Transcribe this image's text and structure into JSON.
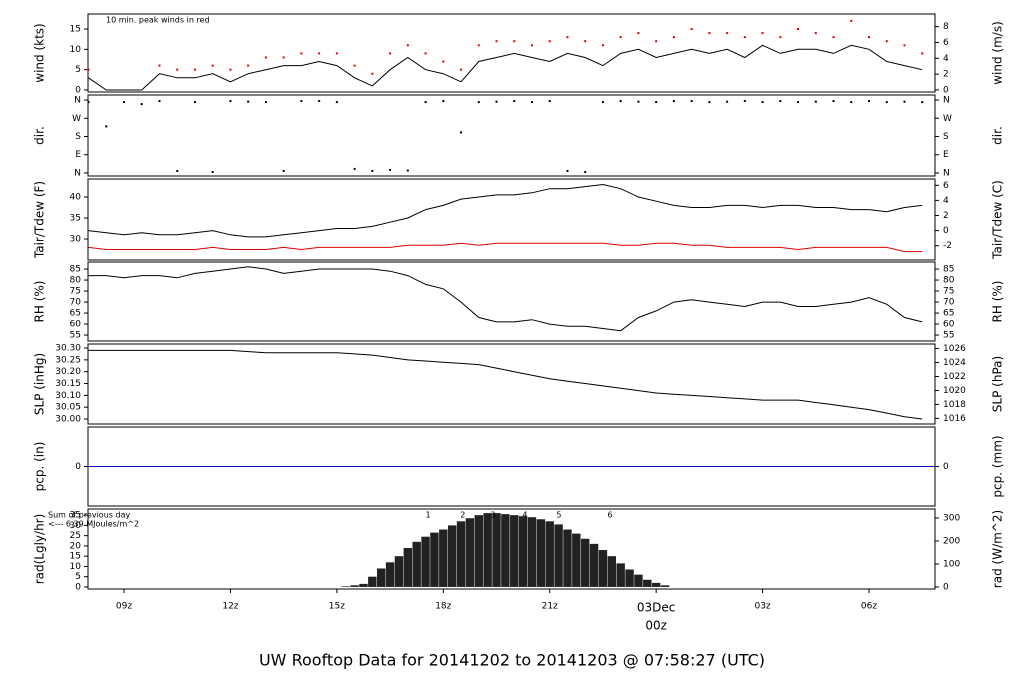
{
  "title": "UW Rooftop Data for 20141202  to  20141203 @ 07:58:27  (UTC)",
  "title_color": "#1a1acc",
  "time_axis": {
    "xlim": [
      7.985,
      31.86
    ],
    "xticks": [
      {
        "value": 9,
        "label": "09z"
      },
      {
        "value": 12,
        "label": "12z"
      },
      {
        "value": 15,
        "label": "15z"
      },
      {
        "value": 18,
        "label": "18z"
      },
      {
        "value": 21,
        "label": "21z"
      },
      {
        "value": 24,
        "label": "00z"
      },
      {
        "value": 27,
        "label": "03z"
      },
      {
        "value": 30,
        "label": "06z"
      }
    ],
    "date_label": {
      "text": "03Dec",
      "x": 24,
      "color": "#dd0000"
    }
  },
  "chart_data": [
    {
      "type": "line",
      "ylabel": "wind (kts)",
      "y2label": "wind (m/s)",
      "ylim": [
        -0.5,
        18.7
      ],
      "yticks": [
        0,
        5,
        10,
        15
      ],
      "y2lim": [
        -0.26,
        9.6
      ],
      "y2ticks": [
        0,
        2,
        4,
        6,
        8
      ],
      "annotation": "10 min. peak winds in red",
      "annotation_color": "#dd0000",
      "x": [
        8,
        8.5,
        9,
        9.5,
        10,
        10.5,
        11,
        11.5,
        12,
        12.5,
        13,
        13.5,
        14,
        14.5,
        15,
        15.5,
        16,
        16.5,
        17,
        17.5,
        18,
        18.5,
        19,
        19.5,
        20,
        20.5,
        21,
        21.5,
        22,
        22.5,
        23,
        23.5,
        24,
        24.5,
        25,
        25.5,
        26,
        26.5,
        27,
        27.5,
        28,
        28.5,
        29,
        29.5,
        30,
        30.5,
        31,
        31.5
      ],
      "series": [
        {
          "kind": "line",
          "color": "#000000",
          "values": [
            3,
            0,
            0,
            0,
            4,
            3,
            3,
            4,
            2,
            4,
            5,
            6,
            6,
            7,
            6,
            3,
            1,
            5,
            8,
            5,
            4,
            2,
            7,
            8,
            9,
            8,
            7,
            9,
            8,
            6,
            9,
            10,
            8,
            9,
            10,
            9,
            10,
            8,
            11,
            9,
            10,
            10,
            9,
            11,
            10,
            7,
            6,
            5
          ]
        },
        {
          "kind": "points",
          "color": "#dd0000",
          "values": [
            5,
            null,
            null,
            null,
            6,
            5,
            5,
            6,
            5,
            6,
            8,
            8,
            9,
            9,
            9,
            6,
            4,
            9,
            11,
            9,
            7,
            5,
            11,
            12,
            12,
            11,
            12,
            13,
            12,
            11,
            13,
            14,
            12,
            13,
            15,
            14,
            14,
            13,
            14,
            13,
            15,
            14,
            13,
            17,
            13,
            12,
            11,
            9
          ]
        }
      ]
    },
    {
      "type": "scatter",
      "ylabel": "dir.",
      "y2label": "dir.",
      "ylim": [
        -15,
        385
      ],
      "yticks": [
        {
          "value": 360,
          "label": "N"
        },
        {
          "value": 270,
          "label": "W"
        },
        {
          "value": 180,
          "label": "S"
        },
        {
          "value": 90,
          "label": "E"
        },
        {
          "value": 0,
          "label": "N"
        }
      ],
      "y2lim": [
        -15,
        385
      ],
      "y2ticks": [
        {
          "value": 360,
          "label": "N"
        },
        {
          "value": 270,
          "label": "W"
        },
        {
          "value": 180,
          "label": "S"
        },
        {
          "value": 90,
          "label": "E"
        },
        {
          "value": 0,
          "label": "N"
        }
      ],
      "x": [
        8,
        8.5,
        9,
        9.5,
        10,
        10.5,
        11,
        11.5,
        12,
        12.5,
        13,
        13.5,
        14,
        14.5,
        15,
        15.5,
        16,
        16.5,
        17,
        17.5,
        18,
        18.5,
        19,
        19.5,
        20,
        20.5,
        21,
        21.5,
        22,
        22.5,
        23,
        23.5,
        24,
        24.5,
        25,
        25.5,
        26,
        26.5,
        27,
        27.5,
        28,
        28.5,
        29,
        29.5,
        30,
        30.5,
        31,
        31.5
      ],
      "series": [
        {
          "kind": "points",
          "color": "#000000",
          "values": [
            350,
            230,
            350,
            340,
            355,
            10,
            350,
            5,
            355,
            352,
            350,
            10,
            355,
            355,
            350,
            20,
            10,
            15,
            12,
            350,
            355,
            200,
            350,
            352,
            355,
            350,
            355,
            10,
            5,
            350,
            355,
            352,
            350,
            355,
            355,
            350,
            352,
            355,
            350,
            355,
            350,
            352,
            355,
            350,
            355,
            350,
            352,
            350
          ]
        }
      ]
    },
    {
      "type": "line",
      "ylabel": "Tair/Tdew (F)",
      "y2label": "Tair/Tdew (C)",
      "ylim": [
        25,
        44.3
      ],
      "yticks": [
        30,
        35,
        40
      ],
      "y2lim": [
        -3.89,
        6.83
      ],
      "y2ticks": [
        -2,
        0,
        2,
        4,
        6
      ],
      "x": [
        8,
        8.5,
        9,
        9.5,
        10,
        10.5,
        11,
        11.5,
        12,
        12.5,
        13,
        13.5,
        14,
        14.5,
        15,
        15.5,
        16,
        16.5,
        17,
        17.5,
        18,
        18.5,
        19,
        19.5,
        20,
        20.5,
        21,
        21.5,
        22,
        22.5,
        23,
        23.5,
        24,
        24.5,
        25,
        25.5,
        26,
        26.5,
        27,
        27.5,
        28,
        28.5,
        29,
        29.5,
        30,
        30.5,
        31,
        31.5
      ],
      "series": [
        {
          "kind": "line",
          "color": "#000000",
          "values": [
            32,
            31.5,
            31,
            31.5,
            31,
            31,
            31.5,
            32,
            31,
            30.5,
            30.5,
            31,
            31.5,
            32,
            32.5,
            32.5,
            33,
            34,
            35,
            37,
            38,
            39.5,
            40,
            40.5,
            40.5,
            41,
            42,
            42,
            42.5,
            43,
            42,
            40,
            39,
            38,
            37.5,
            37.5,
            38,
            38,
            37.5,
            38,
            38,
            37.5,
            37.5,
            37,
            37,
            36.5,
            37.5,
            38
          ]
        },
        {
          "kind": "line",
          "color": "#dd0000",
          "values": [
            28,
            27.5,
            27.5,
            27.5,
            27.5,
            27.5,
            27.5,
            28,
            27.5,
            27.5,
            27.5,
            28,
            27.5,
            28,
            28,
            28,
            28,
            28,
            28.5,
            28.5,
            28.5,
            29,
            28.5,
            29,
            29,
            29,
            29,
            29,
            29,
            29,
            28.5,
            28.5,
            29,
            29,
            28.5,
            28.5,
            28,
            28,
            28,
            28,
            27.5,
            28,
            28,
            28,
            28,
            28,
            27,
            27
          ]
        }
      ]
    },
    {
      "type": "line",
      "ylabel": "RH (%)",
      "y2label": "RH (%)",
      "ylim": [
        52.3,
        88.2
      ],
      "yticks": [
        55,
        60,
        65,
        70,
        75,
        80,
        85
      ],
      "y2lim": [
        52.3,
        88.2
      ],
      "y2ticks": [
        55,
        60,
        65,
        70,
        75,
        80,
        85
      ],
      "x": [
        8,
        8.5,
        9,
        9.5,
        10,
        10.5,
        11,
        11.5,
        12,
        12.5,
        13,
        13.5,
        14,
        14.5,
        15,
        15.5,
        16,
        16.5,
        17,
        17.5,
        18,
        18.5,
        19,
        19.5,
        20,
        20.5,
        21,
        21.5,
        22,
        22.5,
        23,
        23.5,
        24,
        24.5,
        25,
        25.5,
        26,
        26.5,
        27,
        27.5,
        28,
        28.5,
        29,
        29.5,
        30,
        30.5,
        31,
        31.5
      ],
      "series": [
        {
          "kind": "line",
          "color": "#000000",
          "values": [
            82,
            82,
            81,
            82,
            82,
            81,
            83,
            84,
            85,
            86,
            85,
            83,
            84,
            85,
            85,
            85,
            85,
            84,
            82,
            78,
            76,
            70,
            63,
            61,
            61,
            62,
            60,
            59,
            59,
            58,
            57,
            63,
            66,
            70,
            71,
            70,
            69,
            68,
            70,
            70,
            68,
            68,
            69,
            70,
            72,
            69,
            63,
            61
          ]
        }
      ]
    },
    {
      "type": "line",
      "ylabel": "SLP (inHg)",
      "y2label": "SLP (hPa)",
      "ylim": [
        29.979,
        30.317
      ],
      "yticks": [
        {
          "value": 30.0,
          "label": "30.00"
        },
        {
          "value": 30.05,
          "label": "30.05"
        },
        {
          "value": 30.1,
          "label": "30.10"
        },
        {
          "value": 30.15,
          "label": "30.15"
        },
        {
          "value": 30.2,
          "label": "30.20"
        },
        {
          "value": 30.25,
          "label": "30.25"
        },
        {
          "value": 30.3,
          "label": "30.30"
        }
      ],
      "y2lim": [
        1015.2,
        1026.65
      ],
      "y2ticks": [
        1016,
        1018,
        1020,
        1022,
        1024,
        1026
      ],
      "x": [
        8,
        8.5,
        9,
        9.5,
        10,
        10.5,
        11,
        11.5,
        12,
        12.5,
        13,
        13.5,
        14,
        14.5,
        15,
        15.5,
        16,
        16.5,
        17,
        17.5,
        18,
        18.5,
        19,
        19.5,
        20,
        20.5,
        21,
        21.5,
        22,
        22.5,
        23,
        23.5,
        24,
        24.5,
        25,
        25.5,
        26,
        26.5,
        27,
        27.5,
        28,
        28.5,
        29,
        29.5,
        30,
        30.5,
        31,
        31.5
      ],
      "series": [
        {
          "kind": "line",
          "color": "#000000",
          "values": [
            30.29,
            30.29,
            30.29,
            30.29,
            30.29,
            30.29,
            30.29,
            30.29,
            30.29,
            30.285,
            30.28,
            30.28,
            30.28,
            30.28,
            30.28,
            30.275,
            30.27,
            30.26,
            30.25,
            30.245,
            30.24,
            30.235,
            30.23,
            30.215,
            30.2,
            30.185,
            30.17,
            30.16,
            30.15,
            30.14,
            30.13,
            30.12,
            30.11,
            30.105,
            30.1,
            30.095,
            30.09,
            30.085,
            30.08,
            30.08,
            30.08,
            30.07,
            30.06,
            30.05,
            30.04,
            30.025,
            30.01,
            30.0
          ]
        }
      ]
    },
    {
      "type": "line",
      "ylabel": "pcp. (in)",
      "y2label": "pcp. (mm)",
      "ylim": [
        -1,
        1
      ],
      "yticks": [
        0
      ],
      "y2lim": [
        -1,
        1
      ],
      "y2ticks": [
        0
      ],
      "x": [
        7.985,
        31.86
      ],
      "series": [
        {
          "kind": "line",
          "color": "#0000cc",
          "values": [
            0,
            0
          ]
        }
      ]
    },
    {
      "type": "bar",
      "ylabel": "rad(Lgly/hr)",
      "y2label": "rad (W/m^2)",
      "ylim": [
        -1,
        38
      ],
      "yticks": [
        0,
        5,
        10,
        15,
        20,
        25,
        30,
        35
      ],
      "y2lim": [
        -8.7,
        339
      ],
      "y2ticks": [
        0,
        100,
        200,
        300
      ],
      "notes": [
        "Sum of previous day",
        "<--- 6.39 MJoules/m^2"
      ],
      "notes_color": "#9900cc",
      "markers": {
        "x": [
          17.57,
          18.55,
          19.4,
          20.3,
          21.26,
          22.7
        ],
        "values": [
          1,
          2,
          3,
          4,
          5,
          6
        ]
      },
      "x": [
        15,
        15.25,
        15.5,
        15.75,
        16,
        16.25,
        16.5,
        16.75,
        17,
        17.25,
        17.5,
        17.75,
        18,
        18.25,
        18.5,
        18.75,
        19,
        19.25,
        19.5,
        19.75,
        20,
        20.25,
        20.5,
        20.75,
        21,
        21.25,
        21.5,
        21.75,
        22,
        22.25,
        22.5,
        22.75,
        23,
        23.25,
        23.5,
        23.75,
        24,
        24.25,
        24.5
      ],
      "series": [
        {
          "kind": "bars",
          "color": "#222222",
          "values": [
            0,
            0.3,
            0.8,
            1.5,
            5,
            9,
            12,
            15,
            19,
            22,
            24.5,
            26.5,
            28,
            30,
            32,
            33.5,
            35,
            36,
            36,
            35.5,
            35,
            34.5,
            34,
            33,
            32,
            30.5,
            28,
            26,
            23.5,
            21,
            18,
            15,
            11.5,
            8.5,
            6,
            3.5,
            2,
            0.8,
            0
          ]
        }
      ]
    }
  ]
}
